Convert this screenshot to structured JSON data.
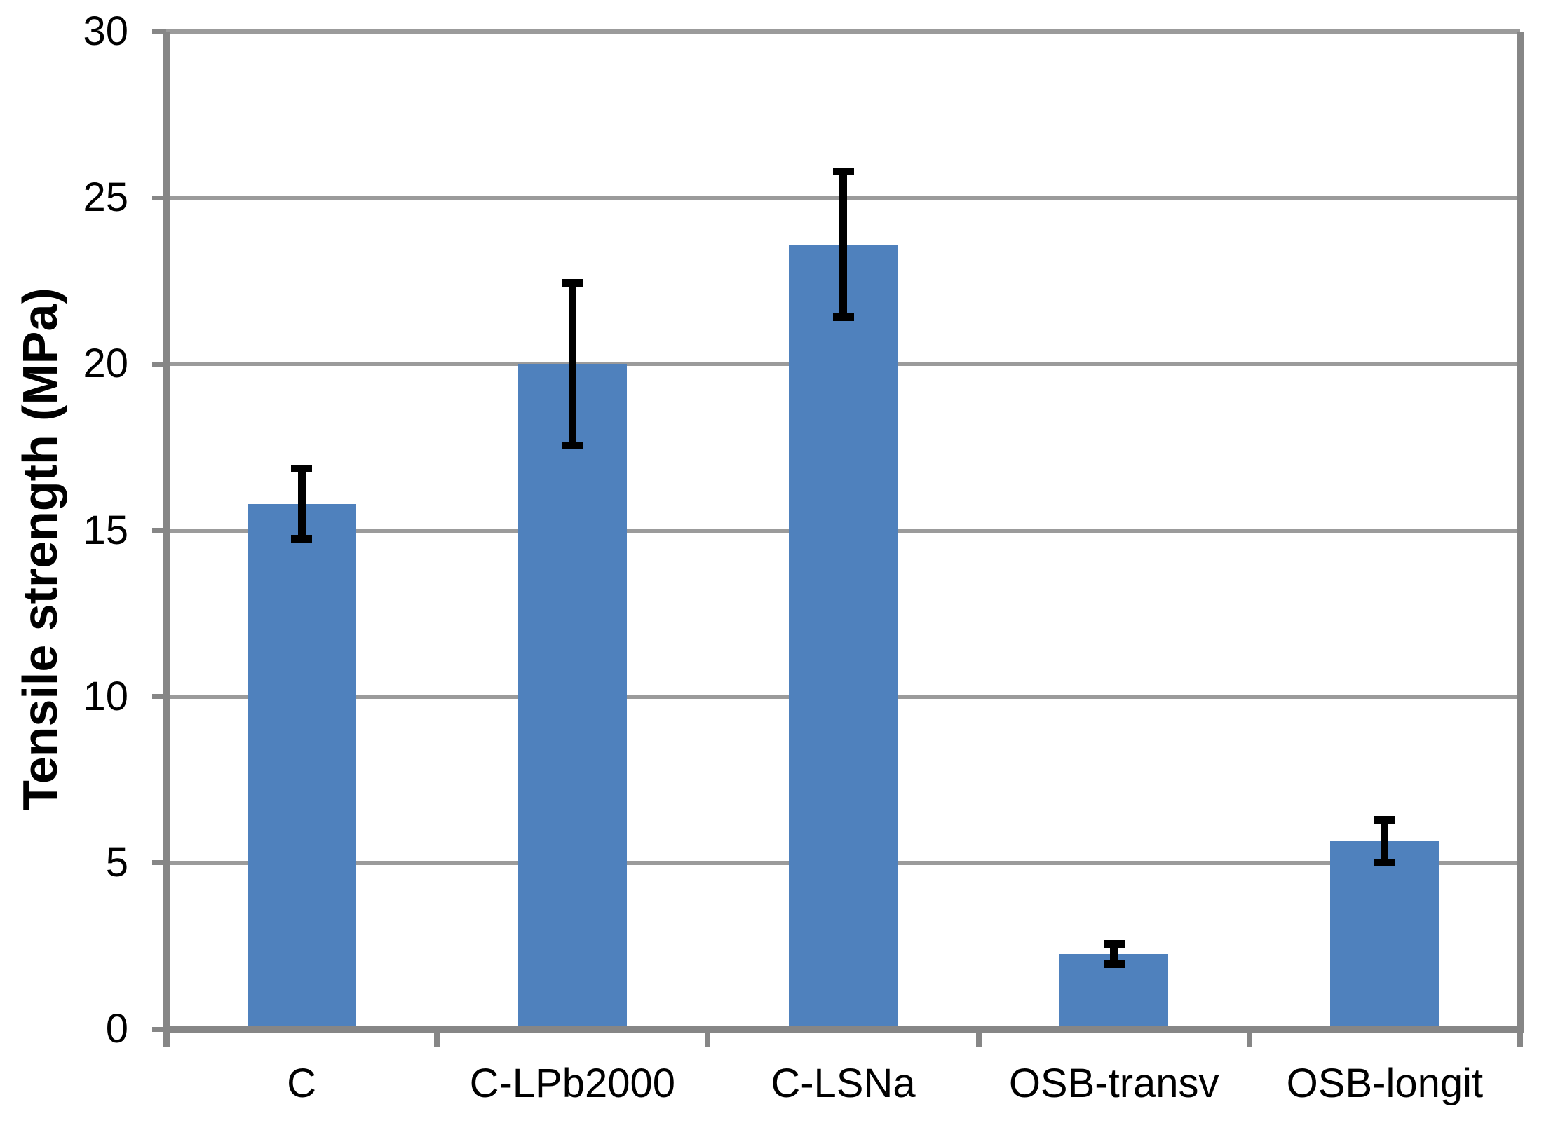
{
  "figure": {
    "background": "#FFFFFF"
  },
  "chart_data": {
    "type": "bar",
    "title": "",
    "xlabel": "",
    "ylabel": "Tensile strength (MPa)",
    "categories": [
      "C",
      "C-LPb2000",
      "C-LSNa",
      "OSB-transv",
      "OSB-longit"
    ],
    "series": [
      {
        "name": "Tensile strength",
        "values": [
          15.8,
          20.0,
          23.6,
          2.25,
          5.65
        ],
        "errors": [
          1.05,
          2.45,
          2.2,
          0.31,
          0.65
        ]
      }
    ],
    "ylim": [
      0,
      30
    ],
    "yticks": [
      0,
      5,
      10,
      15,
      20,
      25,
      30
    ],
    "ytick_labels": [
      "0",
      "5",
      "10",
      "15",
      "20",
      "25",
      "30"
    ],
    "grid": true,
    "legend": "none",
    "colors": {
      "bar_fill": "#4F81BD",
      "error_bar": "#000000",
      "gridline": "#9B9B9B",
      "axis_line": "#868686",
      "text": "#000000"
    }
  }
}
